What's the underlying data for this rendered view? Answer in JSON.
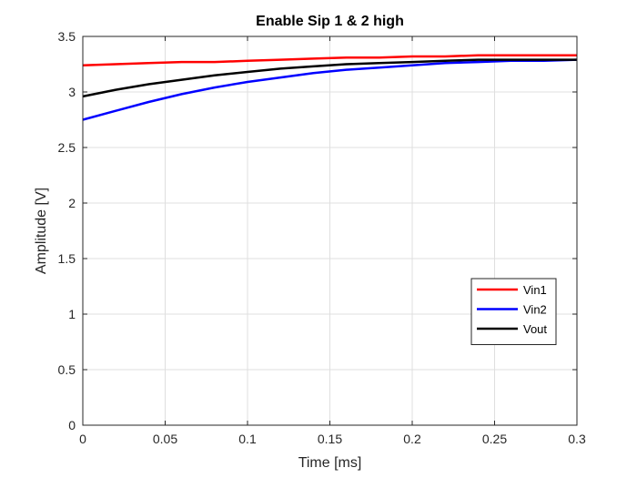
{
  "chart_data": {
    "type": "line",
    "title": "Enable Sip 1 & 2 high",
    "xlabel": "Time [ms]",
    "ylabel": "Amplitude [V]",
    "xlim": [
      0,
      0.3
    ],
    "ylim": [
      0,
      3.5
    ],
    "xticks": [
      0,
      0.05,
      0.1,
      0.15,
      0.2,
      0.25,
      0.3
    ],
    "xtick_labels": [
      "0",
      "0.05",
      "0.1",
      "0.15",
      "0.2",
      "0.25",
      "0.3"
    ],
    "yticks": [
      0,
      0.5,
      1,
      1.5,
      2,
      2.5,
      3,
      3.5
    ],
    "ytick_labels": [
      "0",
      "0.5",
      "1",
      "1.5",
      "2",
      "2.5",
      "3",
      "3.5"
    ],
    "grid": true,
    "legend_position": "lower-right",
    "x": [
      0,
      0.02,
      0.04,
      0.06,
      0.08,
      0.1,
      0.12,
      0.14,
      0.16,
      0.18,
      0.2,
      0.22,
      0.24,
      0.26,
      0.28,
      0.3
    ],
    "series": [
      {
        "name": "Vin1",
        "color": "#ff0000",
        "values": [
          3.24,
          3.25,
          3.26,
          3.27,
          3.27,
          3.28,
          3.29,
          3.3,
          3.31,
          3.31,
          3.32,
          3.32,
          3.33,
          3.33,
          3.33,
          3.33
        ]
      },
      {
        "name": "Vin2",
        "color": "#0000ff",
        "values": [
          2.75,
          2.83,
          2.91,
          2.98,
          3.04,
          3.09,
          3.13,
          3.17,
          3.2,
          3.22,
          3.24,
          3.26,
          3.27,
          3.28,
          3.28,
          3.29
        ]
      },
      {
        "name": "Vout",
        "color": "#000000",
        "values": [
          2.96,
          3.02,
          3.07,
          3.11,
          3.15,
          3.18,
          3.21,
          3.23,
          3.25,
          3.26,
          3.27,
          3.28,
          3.29,
          3.29,
          3.29,
          3.29
        ]
      }
    ]
  }
}
